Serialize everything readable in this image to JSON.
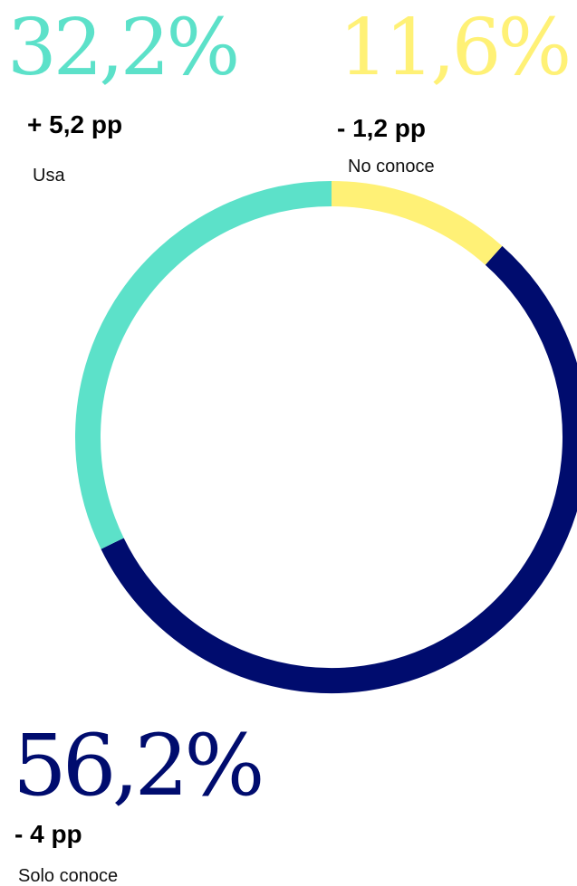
{
  "chart_data": {
    "type": "pie",
    "variant": "donut",
    "start_angle_deg": 0,
    "direction": "clockwise",
    "series": [
      {
        "label": "No conoce",
        "value": 11.6,
        "value_text": "11,6%",
        "change_text": "- 1,2 pp",
        "color": "#FFF176"
      },
      {
        "label": "Solo conoce",
        "value": 56.2,
        "value_text": "56,2%",
        "change_text": "- 4 pp",
        "color": "#000C6E"
      },
      {
        "label": "Usa",
        "value": 32.2,
        "value_text": "32,2%",
        "change_text": "+ 5,2 pp",
        "color": "#5CE1C9"
      }
    ]
  }
}
